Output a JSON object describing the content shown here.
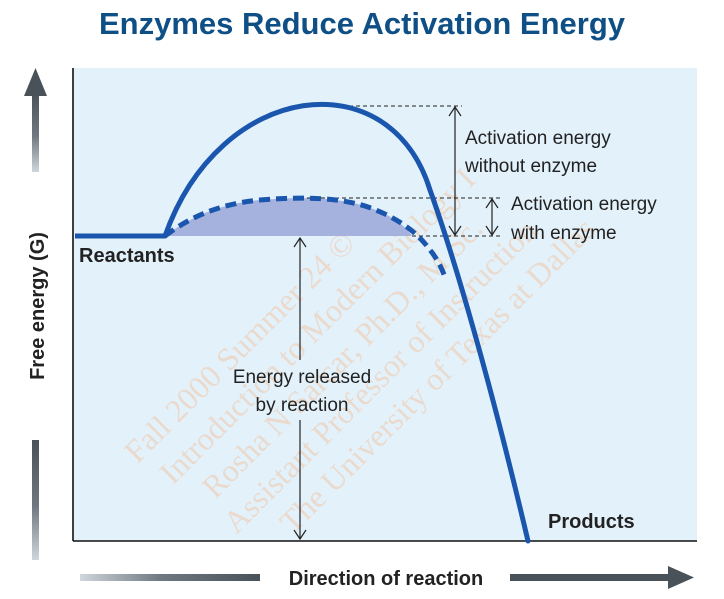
{
  "title": "Enzymes Reduce Activation Energy",
  "labels": {
    "y_axis": "Free energy (G)",
    "x_axis": "Direction of reaction",
    "reactants": "Reactants",
    "products": "Products",
    "activation_without_1": "Activation energy",
    "activation_without_2": "without enzyme",
    "activation_with_1": "Activation energy",
    "activation_with_2": "with enzyme",
    "released_1": "Energy released",
    "released_2": "by reaction"
  },
  "watermark": [
    "The University of Texas at Dallas",
    "Assistant Professor of Instruction",
    "Rosha N Sarcar, Ph.D., M.Sc.",
    "Introduction to Modern Biology I",
    "Fall 2000 Summer 24 ©"
  ],
  "colors": {
    "title": "#0e4f86",
    "background": "#e3f1fb",
    "curve": "#1a56ad",
    "enzyme_fill": "#9aa7d8",
    "arrow_gray": "#555555"
  }
}
